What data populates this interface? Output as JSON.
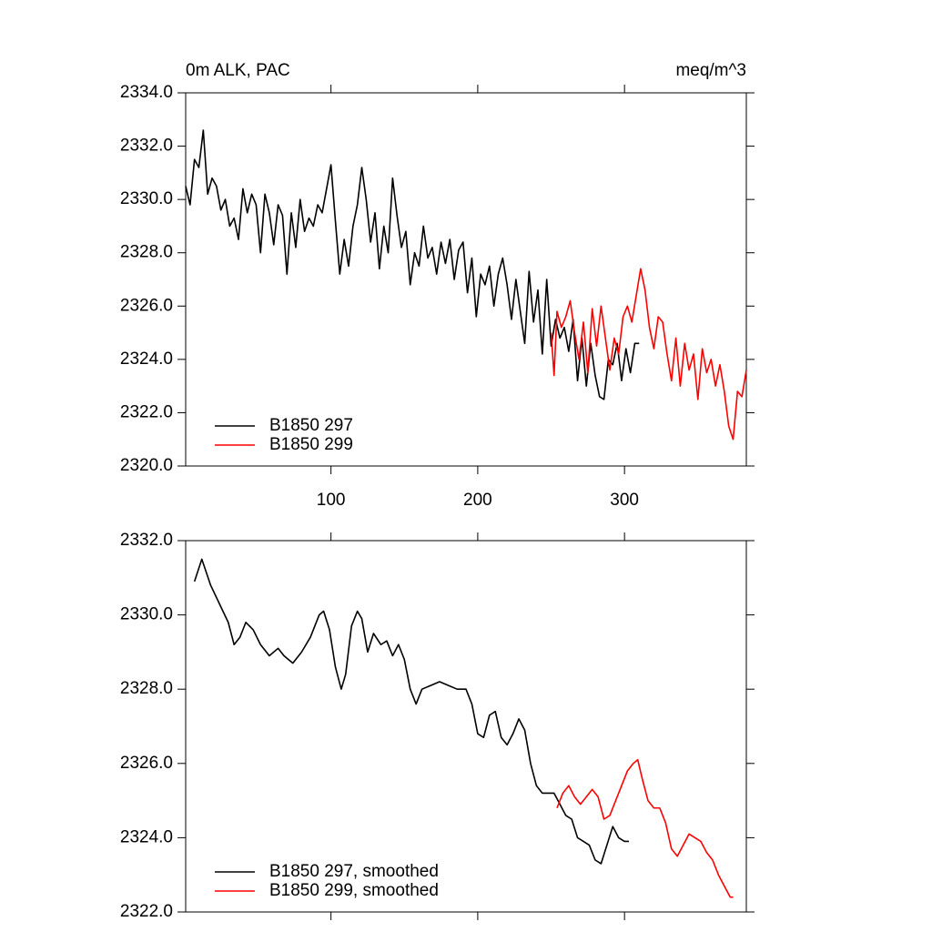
{
  "chart_data": [
    {
      "type": "line",
      "title": "0m ALK, PAC",
      "units": "meq/m^3",
      "xlim": [
        1,
        383
      ],
      "xticks": [
        100,
        200,
        300
      ],
      "ylim": [
        2320,
        2334
      ],
      "yticks": [
        {
          "value": 2320,
          "label": "2320.0"
        },
        {
          "value": 2322,
          "label": "2322.0"
        },
        {
          "value": 2324,
          "label": "2324.0"
        },
        {
          "value": 2326,
          "label": "2326.0"
        },
        {
          "value": 2328,
          "label": "2328.0"
        },
        {
          "value": 2330,
          "label": "2330.0"
        },
        {
          "value": 2332,
          "label": "2332.0"
        },
        {
          "value": 2334,
          "label": "2334.0"
        }
      ],
      "legend": "lower left",
      "series": [
        {
          "name": "B1850 297",
          "color": "#000000",
          "x": [
            1,
            4,
            7,
            10,
            13,
            16,
            19,
            22,
            25,
            28,
            31,
            34,
            37,
            40,
            43,
            46,
            49,
            52,
            55,
            58,
            61,
            64,
            67,
            70,
            73,
            76,
            79,
            82,
            85,
            88,
            91,
            94,
            97,
            100,
            103,
            106,
            109,
            112,
            115,
            118,
            121,
            124,
            127,
            130,
            133,
            136,
            139,
            142,
            145,
            148,
            151,
            154,
            157,
            160,
            163,
            166,
            169,
            172,
            175,
            178,
            181,
            184,
            187,
            190,
            193,
            196,
            199,
            202,
            205,
            208,
            211,
            214,
            217,
            220,
            223,
            226,
            229,
            232,
            235,
            238,
            241,
            244,
            247,
            250,
            253,
            256,
            259,
            262,
            265,
            268,
            271,
            274,
            277,
            280,
            283,
            286,
            289,
            292,
            295,
            298,
            301,
            304,
            307,
            310
          ],
          "values": [
            2330.5,
            2329.8,
            2331.5,
            2331.2,
            2332.6,
            2330.2,
            2330.8,
            2330.5,
            2329.6,
            2330.0,
            2329.0,
            2329.3,
            2328.5,
            2330.4,
            2329.5,
            2330.2,
            2329.8,
            2328.0,
            2330.2,
            2329.5,
            2328.3,
            2329.8,
            2329.4,
            2327.2,
            2329.5,
            2328.2,
            2330.0,
            2328.8,
            2329.3,
            2329.0,
            2329.8,
            2329.5,
            2330.4,
            2331.3,
            2329.2,
            2327.2,
            2328.5,
            2327.5,
            2329.0,
            2329.8,
            2331.2,
            2330.0,
            2328.4,
            2329.5,
            2327.4,
            2329.0,
            2328.0,
            2330.8,
            2329.4,
            2328.2,
            2328.8,
            2326.8,
            2328.0,
            2327.5,
            2329.0,
            2327.8,
            2328.2,
            2327.2,
            2328.4,
            2327.6,
            2328.5,
            2327.0,
            2328.1,
            2328.4,
            2326.5,
            2327.8,
            2325.6,
            2327.2,
            2326.8,
            2327.5,
            2326.0,
            2327.2,
            2327.8,
            2326.8,
            2325.5,
            2327.0,
            2325.8,
            2324.6,
            2327.3,
            2325.4,
            2326.6,
            2324.2,
            2327.0,
            2324.5,
            2325.5,
            2324.8,
            2325.2,
            2324.3,
            2325.5,
            2323.2,
            2324.8,
            2323.0,
            2324.6,
            2323.4,
            2322.6,
            2322.5,
            2324.0,
            2323.8,
            2324.6,
            2323.2,
            2324.4,
            2323.5,
            2324.6,
            2324.6
          ]
        },
        {
          "name": "B1850 299",
          "color": "#ff0000",
          "x": [
            250,
            252,
            254,
            257,
            260,
            263,
            266,
            269,
            272,
            275,
            278,
            281,
            284,
            287,
            290,
            293,
            296,
            299,
            302,
            305,
            308,
            311,
            314,
            317,
            320,
            323,
            326,
            329,
            332,
            335,
            338,
            341,
            344,
            347,
            350,
            353,
            356,
            359,
            362,
            365,
            368,
            371,
            374,
            377,
            380,
            383
          ],
          "values": [
            2325.0,
            2323.4,
            2325.8,
            2325.2,
            2325.6,
            2326.2,
            2325.0,
            2324.0,
            2325.4,
            2323.5,
            2325.9,
            2324.5,
            2326.0,
            2324.8,
            2323.6,
            2324.8,
            2324.2,
            2325.6,
            2326.0,
            2325.4,
            2326.4,
            2327.4,
            2326.6,
            2325.2,
            2324.4,
            2325.6,
            2325.4,
            2324.2,
            2323.2,
            2324.8,
            2323.0,
            2324.6,
            2323.6,
            2324.2,
            2322.5,
            2324.4,
            2323.5,
            2324.0,
            2323.0,
            2323.8,
            2322.8,
            2321.5,
            2321.0,
            2322.8,
            2322.6,
            2323.6
          ]
        }
      ]
    },
    {
      "type": "line",
      "xlim": [
        1,
        383
      ],
      "ylim": [
        2322,
        2332
      ],
      "yticks": [
        {
          "value": 2322,
          "label": "2322.0"
        },
        {
          "value": 2324,
          "label": "2324.0"
        },
        {
          "value": 2326,
          "label": "2326.0"
        },
        {
          "value": 2328,
          "label": "2328.0"
        },
        {
          "value": 2330,
          "label": "2330.0"
        },
        {
          "value": 2332,
          "label": "2332.0"
        }
      ],
      "legend": "lower left",
      "series": [
        {
          "name": "B1850 297, smoothed",
          "color": "#000000",
          "x": [
            7,
            12,
            18,
            24,
            30,
            34,
            38,
            42,
            47,
            52,
            58,
            64,
            68,
            74,
            80,
            86,
            92,
            95,
            99,
            103,
            107,
            110,
            114,
            118,
            121,
            125,
            129,
            134,
            138,
            142,
            146,
            150,
            154,
            158,
            162,
            168,
            174,
            180,
            186,
            192,
            196,
            200,
            204,
            208,
            212,
            216,
            220,
            224,
            228,
            232,
            236,
            240,
            244,
            248,
            252,
            256,
            260,
            264,
            268,
            272,
            276,
            280,
            284,
            288,
            292,
            296,
            300,
            303
          ],
          "values": [
            2330.9,
            2331.5,
            2330.8,
            2330.3,
            2329.8,
            2329.2,
            2329.4,
            2329.8,
            2329.6,
            2329.2,
            2328.9,
            2329.1,
            2328.9,
            2328.7,
            2329.0,
            2329.4,
            2330.0,
            2330.1,
            2329.6,
            2328.6,
            2328.0,
            2328.4,
            2329.7,
            2330.1,
            2329.9,
            2329.0,
            2329.5,
            2329.2,
            2329.3,
            2328.9,
            2329.2,
            2328.8,
            2328.0,
            2327.6,
            2328.0,
            2328.1,
            2328.2,
            2328.1,
            2328.0,
            2328.0,
            2327.6,
            2326.8,
            2326.7,
            2327.3,
            2327.4,
            2326.7,
            2326.5,
            2326.8,
            2327.2,
            2326.9,
            2326.0,
            2325.4,
            2325.2,
            2325.2,
            2325.2,
            2324.9,
            2324.6,
            2324.5,
            2324.0,
            2323.9,
            2323.8,
            2323.4,
            2323.3,
            2323.8,
            2324.3,
            2324.0,
            2323.9,
            2323.9
          ]
        },
        {
          "name": "B1850 299, smoothed",
          "color": "#ff0000",
          "x": [
            254,
            258,
            262,
            266,
            270,
            274,
            278,
            282,
            286,
            290,
            294,
            298,
            302,
            306,
            309,
            312,
            316,
            320,
            324,
            328,
            332,
            336,
            340,
            344,
            348,
            352,
            356,
            360,
            364,
            368,
            372,
            374
          ],
          "values": [
            2324.8,
            2325.2,
            2325.4,
            2325.1,
            2324.9,
            2325.1,
            2325.3,
            2325.1,
            2324.5,
            2324.6,
            2325.0,
            2325.4,
            2325.8,
            2326.0,
            2326.1,
            2325.6,
            2325.0,
            2324.8,
            2324.8,
            2324.4,
            2323.7,
            2323.5,
            2323.8,
            2324.1,
            2324.0,
            2323.9,
            2323.6,
            2323.4,
            2323.0,
            2322.7,
            2322.4,
            2322.4
          ]
        }
      ]
    }
  ]
}
